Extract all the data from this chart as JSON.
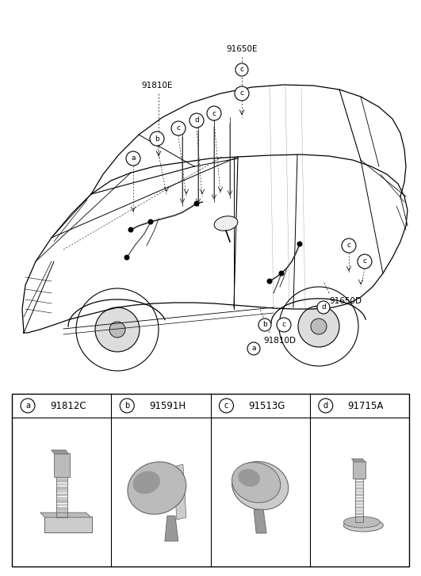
{
  "bg_color": "#ffffff",
  "parts_letters": [
    "a",
    "b",
    "c",
    "d"
  ],
  "parts_codes": [
    "91812C",
    "91591H",
    "91513G",
    "91715A"
  ],
  "label_91650E": "91650E",
  "label_91810E": "91810E",
  "label_91810D": "91810D",
  "label_91650D": "91650D",
  "font_size_code": 7,
  "font_size_label": 7.5,
  "gray1": "#999999",
  "gray2": "#bbbbbb",
  "gray3": "#666666",
  "gray4": "#cccccc"
}
